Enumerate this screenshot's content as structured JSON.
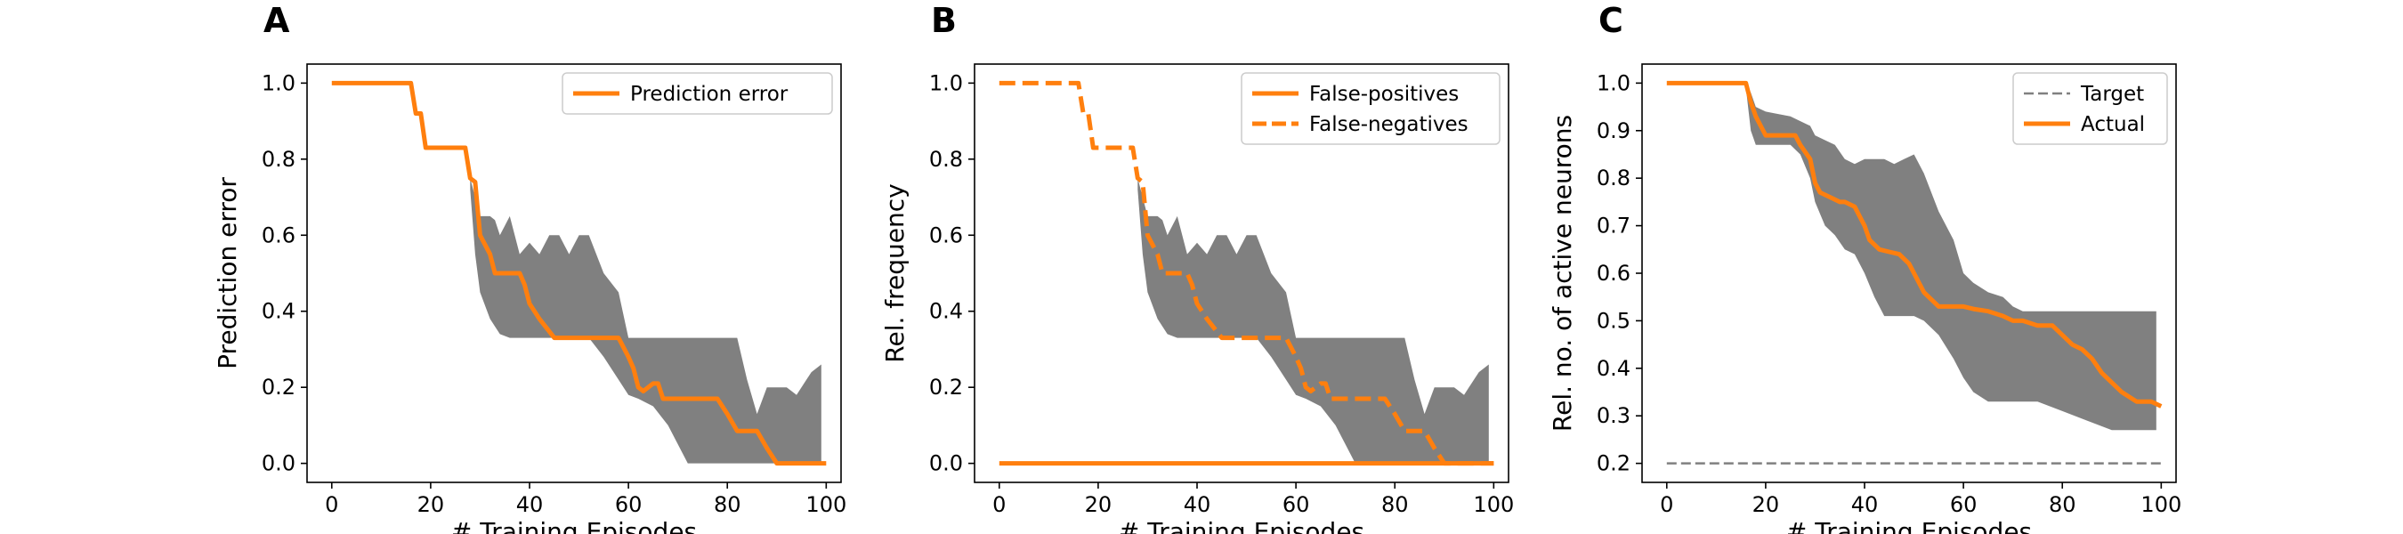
{
  "colors": {
    "series": "#ff7f0e",
    "band": "#808080",
    "target": "#808080",
    "axis": "#000000"
  },
  "chart_data": [
    {
      "panel": "A",
      "type": "line",
      "xlabel": "# Training Episodes",
      "ylabel": "Prediction error",
      "xlim": [
        -5,
        103
      ],
      "ylim": [
        -0.05,
        1.05
      ],
      "xticks": [
        0,
        20,
        40,
        60,
        80,
        100
      ],
      "yticks": [
        0.0,
        0.2,
        0.4,
        0.6,
        0.8,
        1.0
      ],
      "ytick_labels": [
        "0.0",
        "0.2",
        "0.4",
        "0.6",
        "0.8",
        "1.0"
      ],
      "legend": "top-right",
      "series": [
        {
          "name": "Prediction error",
          "style": "solid",
          "x": [
            0,
            16,
            17,
            18,
            19,
            27,
            28,
            29,
            30,
            32,
            33,
            34,
            38,
            39,
            40,
            42,
            45,
            50,
            55,
            58,
            60,
            61,
            62,
            63,
            65,
            66,
            67,
            70,
            75,
            78,
            80,
            82,
            85,
            86,
            88,
            90,
            95,
            100
          ],
          "y": [
            1.0,
            1.0,
            0.92,
            0.92,
            0.83,
            0.83,
            0.75,
            0.74,
            0.6,
            0.55,
            0.5,
            0.5,
            0.5,
            0.47,
            0.42,
            0.38,
            0.33,
            0.33,
            0.33,
            0.33,
            0.28,
            0.25,
            0.2,
            0.19,
            0.21,
            0.21,
            0.17,
            0.17,
            0.17,
            0.17,
            0.13,
            0.085,
            0.085,
            0.085,
            0.04,
            0.0,
            0.0,
            0.0
          ]
        }
      ],
      "band": {
        "x": [
          28,
          29,
          30,
          32,
          33,
          34,
          36,
          38,
          40,
          42,
          44,
          46,
          48,
          50,
          52,
          55,
          58,
          60,
          62,
          65,
          68,
          70,
          72,
          75,
          80,
          82,
          84,
          86,
          88,
          90,
          92,
          94,
          96,
          97,
          99
        ],
        "upper": [
          0.75,
          0.7,
          0.65,
          0.65,
          0.64,
          0.6,
          0.65,
          0.55,
          0.58,
          0.55,
          0.6,
          0.6,
          0.55,
          0.6,
          0.6,
          0.5,
          0.45,
          0.33,
          0.33,
          0.33,
          0.33,
          0.33,
          0.33,
          0.33,
          0.33,
          0.33,
          0.22,
          0.13,
          0.2,
          0.2,
          0.2,
          0.18,
          0.22,
          0.24,
          0.26
        ],
        "lower": [
          0.72,
          0.55,
          0.45,
          0.38,
          0.36,
          0.34,
          0.33,
          0.33,
          0.33,
          0.33,
          0.33,
          0.33,
          0.33,
          0.33,
          0.33,
          0.28,
          0.22,
          0.18,
          0.17,
          0.15,
          0.1,
          0.05,
          0.0,
          0.0,
          0.0,
          0.0,
          0.0,
          0.0,
          0.0,
          0.0,
          0.0,
          0.0,
          0.0,
          0.0,
          0.0
        ]
      }
    },
    {
      "panel": "B",
      "type": "line",
      "xlabel": "# Training Episodes",
      "ylabel": "Rel. frequency",
      "xlim": [
        -5,
        103
      ],
      "ylim": [
        -0.05,
        1.05
      ],
      "xticks": [
        0,
        20,
        40,
        60,
        80,
        100
      ],
      "yticks": [
        0.0,
        0.2,
        0.4,
        0.6,
        0.8,
        1.0
      ],
      "ytick_labels": [
        "0.0",
        "0.2",
        "0.4",
        "0.6",
        "0.8",
        "1.0"
      ],
      "legend": "top-right",
      "series": [
        {
          "name": "False-positives",
          "style": "solid",
          "x": [
            0,
            100
          ],
          "y": [
            0.0,
            0.0
          ]
        },
        {
          "name": "False-negatives",
          "style": "dashed",
          "x": [
            0,
            16,
            17,
            18,
            19,
            27,
            28,
            29,
            30,
            32,
            33,
            34,
            38,
            39,
            40,
            42,
            45,
            50,
            55,
            58,
            60,
            61,
            62,
            63,
            65,
            66,
            67,
            70,
            75,
            78,
            80,
            82,
            85,
            86,
            88,
            90,
            95,
            100
          ],
          "y": [
            1.0,
            1.0,
            0.92,
            0.92,
            0.83,
            0.83,
            0.75,
            0.74,
            0.6,
            0.55,
            0.5,
            0.5,
            0.5,
            0.47,
            0.42,
            0.38,
            0.33,
            0.33,
            0.33,
            0.33,
            0.28,
            0.25,
            0.2,
            0.19,
            0.21,
            0.21,
            0.17,
            0.17,
            0.17,
            0.17,
            0.13,
            0.085,
            0.085,
            0.085,
            0.04,
            0.0,
            0.0,
            0.0
          ]
        }
      ],
      "band": {
        "x": [
          28,
          29,
          30,
          32,
          33,
          34,
          36,
          38,
          40,
          42,
          44,
          46,
          48,
          50,
          52,
          55,
          58,
          60,
          62,
          65,
          68,
          70,
          72,
          75,
          80,
          82,
          84,
          86,
          88,
          90,
          92,
          94,
          96,
          97,
          99
        ],
        "upper": [
          0.75,
          0.7,
          0.65,
          0.65,
          0.64,
          0.6,
          0.65,
          0.55,
          0.58,
          0.55,
          0.6,
          0.6,
          0.55,
          0.6,
          0.6,
          0.5,
          0.45,
          0.33,
          0.33,
          0.33,
          0.33,
          0.33,
          0.33,
          0.33,
          0.33,
          0.33,
          0.22,
          0.13,
          0.2,
          0.2,
          0.2,
          0.18,
          0.22,
          0.24,
          0.26
        ],
        "lower": [
          0.72,
          0.55,
          0.45,
          0.38,
          0.36,
          0.34,
          0.33,
          0.33,
          0.33,
          0.33,
          0.33,
          0.33,
          0.33,
          0.33,
          0.33,
          0.28,
          0.22,
          0.18,
          0.17,
          0.15,
          0.1,
          0.05,
          0.0,
          0.0,
          0.0,
          0.0,
          0.0,
          0.0,
          0.0,
          0.0,
          0.0,
          0.0,
          0.0,
          0.0,
          0.0
        ]
      }
    },
    {
      "panel": "C",
      "type": "line",
      "xlabel": "# Training Episodes",
      "ylabel": "Rel. no. of active neurons",
      "xlim": [
        -5,
        103
      ],
      "ylim": [
        0.16,
        1.04
      ],
      "xticks": [
        0,
        20,
        40,
        60,
        80,
        100
      ],
      "yticks": [
        0.2,
        0.3,
        0.4,
        0.5,
        0.6,
        0.7,
        0.8,
        0.9,
        1.0
      ],
      "ytick_labels": [
        "0.2",
        "0.3",
        "0.4",
        "0.5",
        "0.6",
        "0.7",
        "0.8",
        "0.9",
        "1.0"
      ],
      "legend": "top-right",
      "series": [
        {
          "name": "Target",
          "style": "dashed-thin",
          "x": [
            0,
            100
          ],
          "y": [
            0.2,
            0.2
          ]
        },
        {
          "name": "Actual",
          "style": "solid",
          "x": [
            0,
            16,
            17,
            18,
            19,
            20,
            25,
            26,
            27,
            29,
            30,
            31,
            33,
            35,
            36,
            38,
            39,
            40,
            41,
            43,
            45,
            47,
            49,
            50,
            52,
            55,
            58,
            60,
            62,
            65,
            68,
            70,
            72,
            75,
            78,
            80,
            82,
            84,
            86,
            88,
            90,
            92,
            95,
            98,
            100
          ],
          "y": [
            1.0,
            1.0,
            0.96,
            0.93,
            0.91,
            0.89,
            0.89,
            0.89,
            0.87,
            0.84,
            0.79,
            0.77,
            0.76,
            0.75,
            0.75,
            0.74,
            0.72,
            0.7,
            0.67,
            0.65,
            0.645,
            0.64,
            0.62,
            0.6,
            0.56,
            0.53,
            0.53,
            0.53,
            0.525,
            0.52,
            0.51,
            0.5,
            0.5,
            0.49,
            0.49,
            0.47,
            0.45,
            0.44,
            0.42,
            0.39,
            0.37,
            0.35,
            0.33,
            0.33,
            0.32
          ]
        }
      ],
      "band": {
        "x": [
          16,
          17,
          18,
          20,
          25,
          27,
          29,
          30,
          32,
          34,
          36,
          38,
          40,
          42,
          44,
          46,
          48,
          50,
          52,
          55,
          58,
          60,
          62,
          65,
          68,
          70,
          72,
          75,
          80,
          85,
          90,
          95,
          98,
          99
        ],
        "upper": [
          1.0,
          0.98,
          0.95,
          0.94,
          0.93,
          0.92,
          0.91,
          0.89,
          0.88,
          0.87,
          0.84,
          0.83,
          0.84,
          0.84,
          0.84,
          0.83,
          0.84,
          0.85,
          0.81,
          0.73,
          0.67,
          0.6,
          0.58,
          0.56,
          0.55,
          0.53,
          0.52,
          0.52,
          0.52,
          0.52,
          0.52,
          0.52,
          0.52,
          0.52
        ],
        "lower": [
          0.99,
          0.9,
          0.87,
          0.87,
          0.87,
          0.85,
          0.8,
          0.75,
          0.7,
          0.68,
          0.65,
          0.64,
          0.6,
          0.55,
          0.51,
          0.51,
          0.51,
          0.51,
          0.5,
          0.47,
          0.42,
          0.38,
          0.35,
          0.33,
          0.33,
          0.33,
          0.33,
          0.33,
          0.31,
          0.29,
          0.27,
          0.27,
          0.27,
          0.27
        ]
      }
    }
  ]
}
